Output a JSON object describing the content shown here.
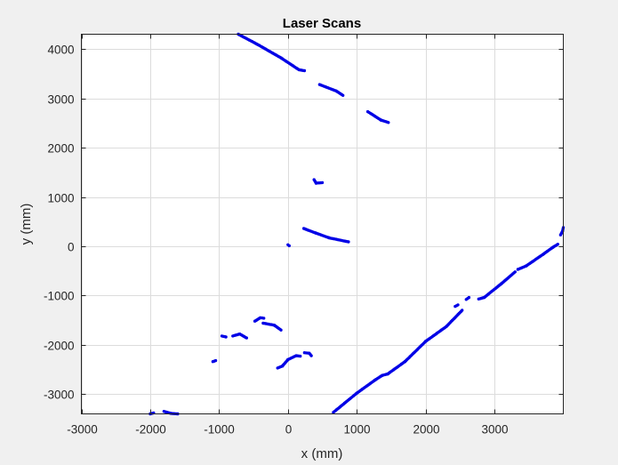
{
  "chart_data": {
    "type": "scatter",
    "title": "Laser Scans",
    "xlabel": "x (mm)",
    "ylabel": "y (mm)",
    "xlim": [
      -3000,
      4000
    ],
    "ylim": [
      -3400,
      4300
    ],
    "xticks": [
      -3000,
      -2000,
      -1000,
      0,
      1000,
      2000,
      3000
    ],
    "yticks": [
      -3000,
      -2000,
      -1000,
      0,
      1000,
      2000,
      3000,
      4000
    ],
    "grid": true,
    "point_color": "#0000e6",
    "segments": [
      [
        [
          -720,
          4300
        ],
        [
          -450,
          4100
        ],
        [
          -100,
          3820
        ],
        [
          160,
          3580
        ],
        [
          240,
          3560
        ]
      ],
      [
        [
          460,
          3280
        ],
        [
          700,
          3150
        ],
        [
          800,
          3060
        ]
      ],
      [
        [
          1160,
          2730
        ],
        [
          1350,
          2560
        ],
        [
          1460,
          2510
        ]
      ],
      [
        [
          380,
          1350
        ],
        [
          410,
          1280
        ],
        [
          500,
          1290
        ]
      ],
      [
        [
          230,
          360
        ],
        [
          400,
          270
        ],
        [
          600,
          170
        ],
        [
          840,
          100
        ],
        [
          880,
          90
        ]
      ],
      [
        [
          0,
          30
        ],
        [
          20,
          10
        ]
      ],
      [
        [
          -1090,
          -2340
        ],
        [
          -1050,
          -2320
        ]
      ],
      [
        [
          -960,
          -1820
        ],
        [
          -900,
          -1840
        ]
      ],
      [
        [
          -800,
          -1820
        ],
        [
          -700,
          -1780
        ],
        [
          -600,
          -1860
        ]
      ],
      [
        [
          -480,
          -1520
        ],
        [
          -400,
          -1450
        ],
        [
          -350,
          -1460
        ]
      ],
      [
        [
          -360,
          -1560
        ],
        [
          -200,
          -1600
        ],
        [
          -100,
          -1700
        ]
      ],
      [
        [
          -150,
          -2470
        ],
        [
          -80,
          -2430
        ],
        [
          0,
          -2300
        ],
        [
          120,
          -2220
        ],
        [
          180,
          -2230
        ]
      ],
      [
        [
          240,
          -2160
        ],
        [
          310,
          -2170
        ],
        [
          340,
          -2220
        ]
      ],
      [
        [
          -2000,
          -3400
        ],
        [
          -1950,
          -3380
        ]
      ],
      [
        [
          -1800,
          -3350
        ],
        [
          -1700,
          -3390
        ],
        [
          -1600,
          -3400
        ]
      ],
      [
        [
          660,
          -3370
        ],
        [
          1000,
          -2980
        ],
        [
          1280,
          -2700
        ],
        [
          1370,
          -2620
        ],
        [
          1450,
          -2590
        ],
        [
          1700,
          -2340
        ],
        [
          2000,
          -1930
        ],
        [
          2300,
          -1630
        ],
        [
          2530,
          -1300
        ]
      ],
      [
        [
          2430,
          -1220
        ],
        [
          2470,
          -1190
        ]
      ],
      [
        [
          2590,
          -1080
        ],
        [
          2630,
          -1040
        ]
      ],
      [
        [
          2770,
          -1070
        ],
        [
          2850,
          -1040
        ],
        [
          3100,
          -760
        ],
        [
          3300,
          -520
        ]
      ],
      [
        [
          3340,
          -470
        ],
        [
          3460,
          -400
        ],
        [
          3700,
          -170
        ],
        [
          3850,
          -20
        ],
        [
          3920,
          40
        ]
      ],
      [
        [
          3960,
          230
        ],
        [
          3990,
          310
        ],
        [
          4000,
          380
        ]
      ]
    ]
  }
}
